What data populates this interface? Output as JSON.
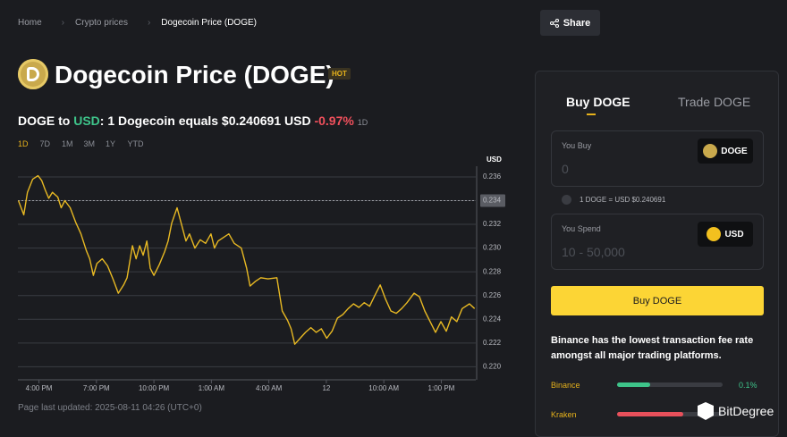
{
  "breadcrumb": [
    "Home",
    "Crypto prices",
    "Dogecoin Price (DOGE)"
  ],
  "share": "Share",
  "title": "Dogecoin Price (DOGE)",
  "badge": "HOT",
  "price_line": [
    "DOGE to",
    "USD",
    ": 1 Dogecoin equals $0.240691 USD",
    "-0.97%",
    "1D"
  ],
  "timeframes": [
    "1D",
    "7D",
    "1M",
    "3M",
    "1Y",
    "YTD"
  ],
  "active_timeframe": "1D",
  "chart_data": {
    "type": "line",
    "y_label": "USD",
    "color": "#e8b923",
    "grid": true,
    "x": [
      14.93,
      15.21,
      15.4,
      15.67,
      15.95,
      16.14,
      16.33,
      16.51,
      16.7,
      16.98,
      17.16,
      17.35,
      17.63,
      17.91,
      18.19,
      18.47,
      18.65,
      18.84,
      19.02,
      19.3,
      19.58,
      19.86,
      20.14,
      20.42,
      20.6,
      20.88,
      21.07,
      21.26,
      21.44,
      21.63,
      21.81,
      22.0,
      22.28,
      22.56,
      22.74,
      22.93,
      23.21,
      23.49,
      23.67,
      23.86,
      24.14,
      24.42,
      24.7,
      24.98,
      25.16,
      25.35,
      25.63,
      25.91,
      26.19,
      26.56,
      26.84,
      27.02,
      27.3,
      27.58,
      27.95,
      28.42,
      28.7,
      28.98,
      29.16,
      29.35,
      29.63,
      29.91,
      30.19,
      30.47,
      30.74,
      31.02,
      31.3,
      31.58,
      31.86,
      32.14,
      32.42,
      32.7,
      32.98,
      33.26,
      33.53,
      33.81,
      34.09,
      34.37,
      34.65,
      34.93,
      35.21,
      35.58,
      35.86,
      36.14,
      36.42,
      36.7,
      36.98,
      37.26,
      37.53,
      37.81,
      38.09,
      38.47,
      38.74
    ],
    "values": [
      0.234,
      0.2328,
      0.2347,
      0.2358,
      0.2361,
      0.2357,
      0.2349,
      0.2342,
      0.2347,
      0.2343,
      0.2334,
      0.234,
      0.2334,
      0.2322,
      0.2312,
      0.2298,
      0.2291,
      0.2277,
      0.2287,
      0.2291,
      0.2285,
      0.2274,
      0.2262,
      0.2269,
      0.2275,
      0.2302,
      0.2291,
      0.2302,
      0.2294,
      0.2306,
      0.2283,
      0.2277,
      0.2286,
      0.2297,
      0.2306,
      0.2321,
      0.2334,
      0.2317,
      0.2306,
      0.2312,
      0.23,
      0.2307,
      0.2304,
      0.2312,
      0.23,
      0.2306,
      0.2309,
      0.2312,
      0.2304,
      0.23,
      0.2283,
      0.2268,
      0.2272,
      0.2275,
      0.2274,
      0.2275,
      0.2247,
      0.2239,
      0.2232,
      0.2219,
      0.2224,
      0.2229,
      0.2233,
      0.2229,
      0.2232,
      0.2224,
      0.223,
      0.2241,
      0.2244,
      0.2249,
      0.2253,
      0.225,
      0.2254,
      0.2251,
      0.226,
      0.2269,
      0.2257,
      0.2247,
      0.2245,
      0.2249,
      0.2254,
      0.2262,
      0.2259,
      0.2247,
      0.2238,
      0.2229,
      0.2238,
      0.223,
      0.2242,
      0.2238,
      0.2249,
      0.2253,
      0.2249
    ],
    "xlim": [
      14.9,
      38.8
    ],
    "xticks": [
      {
        "value": 16,
        "label": "4:00 PM"
      },
      {
        "value": 19,
        "label": "7:00 PM"
      },
      {
        "value": 22,
        "label": "10:00 PM"
      },
      {
        "value": 25,
        "label": "1:00 AM"
      },
      {
        "value": 28,
        "label": "4:00 AM"
      },
      {
        "value": 31,
        "label": "12"
      },
      {
        "value": 34,
        "label": "10:00 AM"
      },
      {
        "value": 37,
        "label": "1:00 PM"
      }
    ],
    "ylim": [
      0.2189,
      0.2369
    ],
    "yticks": [
      {
        "value": 0.22,
        "label": "0.220"
      },
      0.222,
      0.224,
      0.226,
      0.228,
      {
        "value": 0.23,
        "label": "0.230"
      },
      0.232,
      0.234,
      0.236
    ],
    "price_marker": 0.234
  },
  "last_updated": "Page last updated: 2025-08-11 04:26 (UTC+0)",
  "trade": {
    "tabs": [
      "Buy DOGE",
      "Trade DOGE"
    ],
    "buy_label": "You Buy",
    "buy_placeholder": "0",
    "buy_currency": "DOGE",
    "rate": "1 DOGE = USD $0.240691",
    "spend_label": "You Spend",
    "spend_placeholder": "10 - 50,000",
    "spend_currency": "USD",
    "button": "Buy DOGE",
    "note": "Binance has the lowest transaction fee rate amongst all major trading platforms.",
    "exchanges": {
      "xlim": [
        0,
        0.32
      ],
      "items": [
        {
          "name": "Binance",
          "fee": 0.1,
          "fee_label": "0.1%",
          "color": "#3ec48a"
        },
        {
          "name": "Kraken",
          "fee": 0.2,
          "color": "#e8505b"
        }
      ]
    }
  },
  "brand": "BitDegree"
}
